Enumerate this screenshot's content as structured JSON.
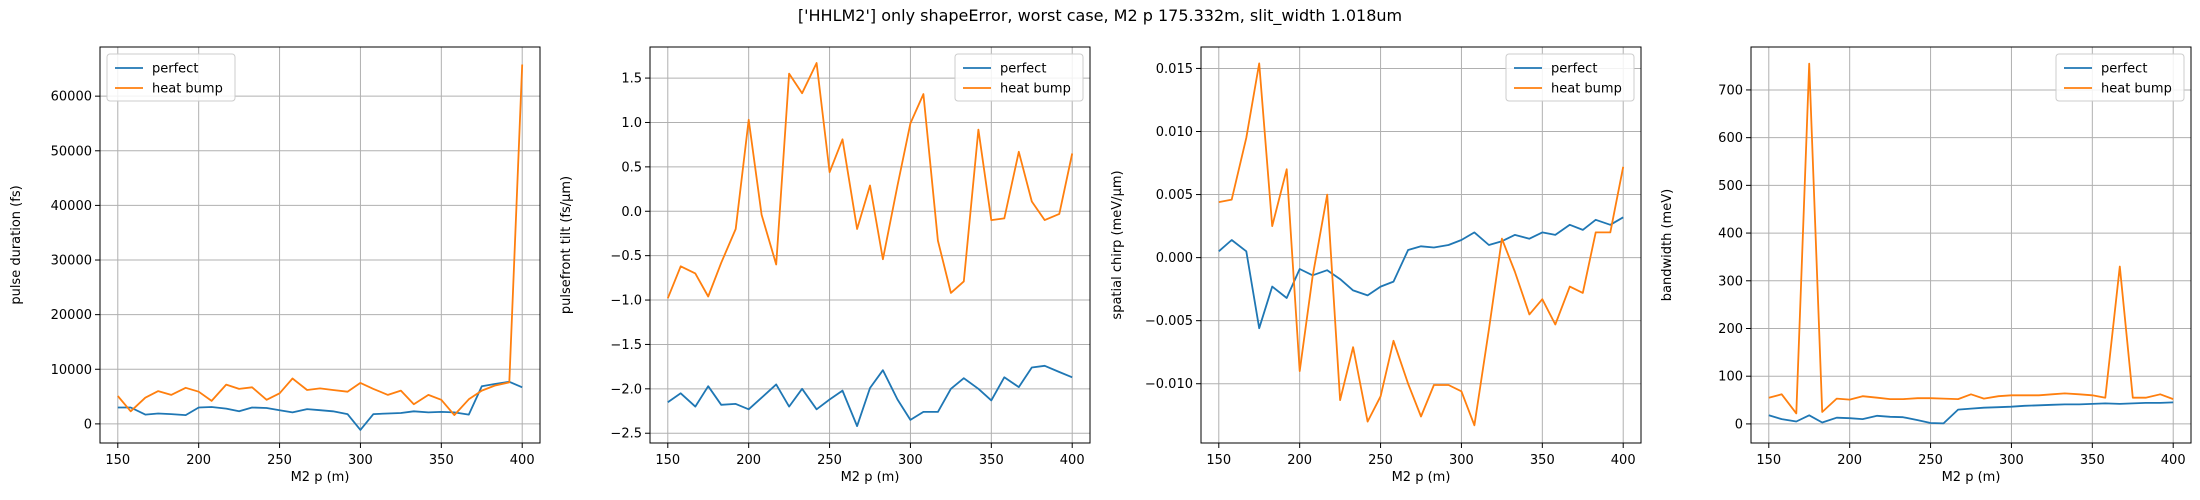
{
  "figure": {
    "title": "['HHLM2'] only shapeError, worst case, M2 p 175.332m, slit_width 1.018um"
  },
  "colors": {
    "perfect": "#1f77b4",
    "heat_bump": "#ff7f0e",
    "grid": "#b0b0b0"
  },
  "chart_data": [
    {
      "type": "line",
      "xlabel": "M2 p (m)",
      "ylabel": "pulse duration (fs)",
      "xlim": [
        139,
        411
      ],
      "ylim": [
        -3500,
        69000
      ],
      "xticks": [
        150,
        200,
        250,
        300,
        350,
        400
      ],
      "xtick_labels": [
        "150",
        "200",
        "250",
        "300",
        "350",
        "400"
      ],
      "yticks": [
        0,
        10000,
        20000,
        30000,
        40000,
        50000,
        60000
      ],
      "ytick_labels": [
        "0",
        "10000",
        "20000",
        "30000",
        "40000",
        "50000",
        "60000"
      ],
      "grid": true,
      "legend": "upper left",
      "series": [
        {
          "name": "perfect",
          "color": "#1f77b4",
          "x": [
            150,
            158,
            167,
            175,
            183,
            192,
            200,
            208,
            217,
            225,
            233,
            242,
            250,
            258,
            267,
            275,
            283,
            292,
            300,
            308,
            317,
            325,
            333,
            342,
            350,
            358,
            367,
            375,
            383,
            392,
            400
          ],
          "y": [
            3000,
            3000,
            1700,
            1900,
            1800,
            1600,
            3000,
            3100,
            2800,
            2300,
            3000,
            2900,
            2500,
            2100,
            2700,
            2500,
            2300,
            1800,
            -1100,
            1800,
            1900,
            2000,
            2300,
            2100,
            2200,
            2100,
            1700,
            6900,
            7300,
            7700,
            6700
          ]
        },
        {
          "name": "heat bump",
          "color": "#ff7f0e",
          "x": [
            150,
            158,
            167,
            175,
            183,
            192,
            200,
            208,
            217,
            225,
            233,
            242,
            250,
            258,
            267,
            275,
            283,
            292,
            300,
            308,
            317,
            325,
            333,
            342,
            350,
            358,
            367,
            375,
            383,
            392,
            400
          ],
          "y": [
            5100,
            2300,
            4800,
            6000,
            5300,
            6600,
            5900,
            4200,
            7200,
            6400,
            6700,
            4400,
            5600,
            8300,
            6200,
            6500,
            6200,
            5900,
            7500,
            6400,
            5300,
            6100,
            3600,
            5300,
            4400,
            1600,
            4500,
            6100,
            7000,
            7600,
            65800
          ]
        }
      ]
    },
    {
      "type": "line",
      "xlabel": "M2 p (m)",
      "ylabel": "pulsefront tilt (fs/μm)",
      "xlim": [
        139,
        411
      ],
      "ylim": [
        -2.61,
        1.85
      ],
      "xticks": [
        150,
        200,
        250,
        300,
        350,
        400
      ],
      "xtick_labels": [
        "150",
        "200",
        "250",
        "300",
        "350",
        "400"
      ],
      "yticks": [
        -2.5,
        -2.0,
        -1.5,
        -1.0,
        -0.5,
        0.0,
        0.5,
        1.0,
        1.5
      ],
      "ytick_labels": [
        "−2.5",
        "−2.0",
        "−1.5",
        "−1.0",
        "−0.5",
        "0.0",
        "0.5",
        "1.0",
        "1.5"
      ],
      "grid": true,
      "legend": "upper right",
      "series": [
        {
          "name": "perfect",
          "color": "#1f77b4",
          "x": [
            150,
            158,
            167,
            175,
            183,
            192,
            200,
            208,
            217,
            225,
            233,
            242,
            250,
            258,
            267,
            275,
            283,
            292,
            300,
            308,
            317,
            325,
            333,
            342,
            350,
            358,
            367,
            375,
            383,
            392,
            400
          ],
          "y": [
            -2.15,
            -2.05,
            -2.2,
            -1.97,
            -2.18,
            -2.17,
            -2.23,
            -2.1,
            -1.95,
            -2.2,
            -2.0,
            -2.23,
            -2.12,
            -2.02,
            -2.42,
            -1.99,
            -1.79,
            -2.12,
            -2.35,
            -2.26,
            -2.26,
            -2.0,
            -1.88,
            -2.0,
            -2.13,
            -1.87,
            -1.98,
            -1.76,
            -1.74,
            -1.81,
            -1.87
          ]
        },
        {
          "name": "heat bump",
          "color": "#ff7f0e",
          "x": [
            150,
            158,
            167,
            175,
            183,
            192,
            200,
            208,
            217,
            225,
            233,
            242,
            250,
            258,
            267,
            275,
            283,
            292,
            300,
            308,
            317,
            325,
            333,
            342,
            350,
            358,
            367,
            375,
            383,
            392,
            400
          ],
          "y": [
            -0.98,
            -0.62,
            -0.7,
            -0.96,
            -0.58,
            -0.2,
            1.03,
            -0.04,
            -0.6,
            1.55,
            1.33,
            1.67,
            0.44,
            0.81,
            -0.2,
            0.29,
            -0.54,
            0.29,
            0.99,
            1.32,
            -0.33,
            -0.92,
            -0.79,
            0.92,
            -0.1,
            -0.08,
            0.67,
            0.11,
            -0.1,
            -0.03,
            0.65
          ]
        }
      ]
    },
    {
      "type": "line",
      "xlabel": "M2 p (m)",
      "ylabel": "spatial chirp (meV/μm)",
      "xlim": [
        139,
        411
      ],
      "ylim": [
        -0.0147,
        0.0167
      ],
      "xticks": [
        150,
        200,
        250,
        300,
        350,
        400
      ],
      "xtick_labels": [
        "150",
        "200",
        "250",
        "300",
        "350",
        "400"
      ],
      "yticks": [
        -0.01,
        -0.005,
        0.0,
        0.005,
        0.01,
        0.015
      ],
      "ytick_labels": [
        "−0.010",
        "−0.005",
        "0.000",
        "0.005",
        "0.010",
        "0.015"
      ],
      "grid": true,
      "legend": "upper right",
      "series": [
        {
          "name": "perfect",
          "color": "#1f77b4",
          "x": [
            150,
            158,
            167,
            175,
            183,
            192,
            200,
            208,
            217,
            225,
            233,
            242,
            250,
            258,
            267,
            275,
            283,
            292,
            300,
            308,
            317,
            325,
            333,
            342,
            350,
            358,
            367,
            375,
            383,
            392,
            400
          ],
          "y": [
            0.0005,
            0.0014,
            0.0005,
            -0.0056,
            -0.0023,
            -0.0032,
            -0.0009,
            -0.0014,
            -0.001,
            -0.0017,
            -0.0026,
            -0.003,
            -0.0023,
            -0.0019,
            0.0006,
            0.0009,
            0.0008,
            0.001,
            0.0014,
            0.002,
            0.001,
            0.0013,
            0.0018,
            0.0015,
            0.002,
            0.0018,
            0.0026,
            0.0022,
            0.003,
            0.0026,
            0.0032
          ]
        },
        {
          "name": "heat bump",
          "color": "#ff7f0e",
          "x": [
            150,
            158,
            167,
            175,
            183,
            192,
            200,
            208,
            217,
            225,
            233,
            242,
            250,
            258,
            267,
            275,
            283,
            292,
            300,
            308,
            317,
            325,
            333,
            342,
            350,
            358,
            367,
            375,
            383,
            392,
            400
          ],
          "y": [
            0.0044,
            0.0046,
            0.0095,
            0.0154,
            0.0025,
            0.007,
            -0.009,
            -0.0015,
            0.005,
            -0.0113,
            -0.0071,
            -0.013,
            -0.011,
            -0.0066,
            -0.01,
            -0.0126,
            -0.0101,
            -0.0101,
            -0.0106,
            -0.0133,
            -0.0057,
            0.0015,
            -0.0011,
            -0.0045,
            -0.0033,
            -0.0053,
            -0.0023,
            -0.0028,
            0.002,
            0.002,
            0.0072
          ]
        }
      ]
    },
    {
      "type": "line",
      "xlabel": "M2 p (m)",
      "ylabel": "bandwidth (meV)",
      "xlim": [
        139,
        411
      ],
      "ylim": [
        -40,
        790
      ],
      "xticks": [
        150,
        200,
        250,
        300,
        350,
        400
      ],
      "xtick_labels": [
        "150",
        "200",
        "250",
        "300",
        "350",
        "400"
      ],
      "yticks": [
        0,
        100,
        200,
        300,
        400,
        500,
        600,
        700
      ],
      "ytick_labels": [
        "0",
        "100",
        "200",
        "300",
        "400",
        "500",
        "600",
        "700"
      ],
      "grid": true,
      "legend": "upper right",
      "series": [
        {
          "name": "perfect",
          "color": "#1f77b4",
          "x": [
            150,
            158,
            167,
            175,
            183,
            192,
            200,
            208,
            217,
            225,
            233,
            242,
            250,
            258,
            267,
            275,
            283,
            292,
            300,
            308,
            317,
            325,
            333,
            342,
            350,
            358,
            367,
            375,
            383,
            392,
            400
          ],
          "y": [
            18,
            10,
            5,
            18,
            3,
            13,
            12,
            10,
            17,
            15,
            14,
            8,
            2,
            1,
            30,
            32,
            34,
            35,
            36,
            38,
            39,
            40,
            41,
            41,
            42,
            43,
            42,
            43,
            44,
            44,
            45
          ]
        },
        {
          "name": "heat bump",
          "color": "#ff7f0e",
          "x": [
            150,
            158,
            167,
            175,
            183,
            192,
            200,
            208,
            217,
            225,
            233,
            242,
            250,
            258,
            267,
            275,
            283,
            292,
            300,
            308,
            317,
            325,
            333,
            342,
            350,
            358,
            367,
            375,
            383,
            392,
            400
          ],
          "y": [
            55,
            62,
            22,
            755,
            25,
            53,
            51,
            58,
            55,
            52,
            52,
            54,
            54,
            53,
            52,
            62,
            53,
            58,
            60,
            60,
            60,
            62,
            64,
            62,
            60,
            55,
            330,
            55,
            55,
            62,
            52
          ]
        }
      ]
    }
  ]
}
